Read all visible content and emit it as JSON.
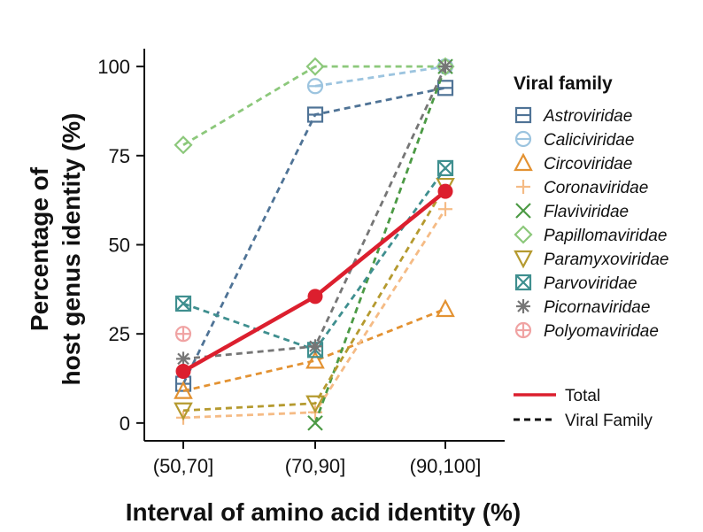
{
  "chart_data": {
    "type": "line",
    "title": "",
    "xlabel": "Interval of amino acid identity (%)",
    "ylabel_lines": [
      "Percentage of",
      "host genus identity (%)"
    ],
    "categories": [
      "(50,70]",
      "(70,90]",
      "(90,100]"
    ],
    "ylim": [
      -5,
      105
    ],
    "yticks": [
      0,
      25,
      50,
      75,
      100
    ],
    "grid": false,
    "legend": {
      "title": "Viral family",
      "placement": "right",
      "total_label": "Total",
      "viral_family_label": "Viral Family"
    },
    "series": [
      {
        "name": "Astroviridae",
        "marker": "square-minus",
        "color": "#4f7396",
        "values": [
          11,
          86.5,
          94
        ]
      },
      {
        "name": "Caliciviridae",
        "marker": "circle-minus",
        "color": "#9cc4df",
        "values": [
          null,
          94.5,
          100
        ]
      },
      {
        "name": "Circoviridae",
        "marker": "triangle",
        "color": "#e39232",
        "values": [
          9,
          17.5,
          32
        ]
      },
      {
        "name": "Coronaviridae",
        "marker": "plus",
        "color": "#f5bb85",
        "values": [
          1.5,
          3,
          60
        ]
      },
      {
        "name": "Flaviviridae",
        "marker": "x",
        "color": "#4c9a45",
        "values": [
          null,
          0,
          100
        ]
      },
      {
        "name": "Papillomaviridae",
        "marker": "diamond",
        "color": "#8cc87b",
        "values": [
          78,
          100,
          100
        ]
      },
      {
        "name": "Paramyxoviridae",
        "marker": "triangle-down",
        "color": "#b59a2f",
        "values": [
          3.5,
          5.5,
          66.5
        ]
      },
      {
        "name": "Parvoviridae",
        "marker": "square-x",
        "color": "#3f8f8f",
        "values": [
          33.5,
          20.5,
          71.5
        ]
      },
      {
        "name": "Picornaviridae",
        "marker": "asterisk",
        "color": "#767676",
        "values": [
          18,
          21.5,
          100
        ]
      },
      {
        "name": "Polyomaviridae",
        "marker": "circle-plus",
        "color": "#f0a3a3",
        "values": [
          25,
          null,
          null
        ]
      }
    ],
    "total": {
      "name": "Total",
      "color": "#dc1f2e",
      "values": [
        14.5,
        35.5,
        65
      ]
    }
  }
}
